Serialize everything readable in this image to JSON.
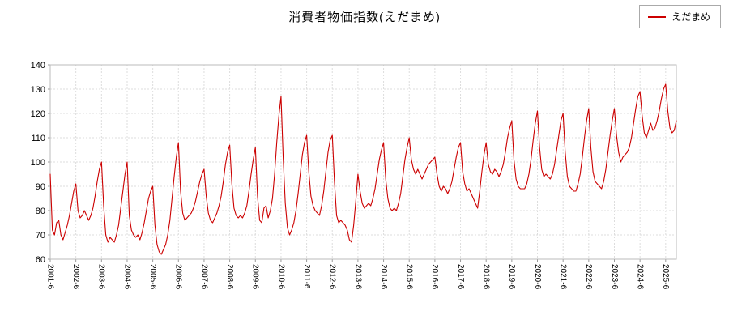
{
  "title": "消費者物価指数(えだまめ)",
  "legend": {
    "label": "えだまめ",
    "line_color": "#cc0000"
  },
  "chart_data": {
    "type": "line",
    "title": "消費者物価指数(えだまめ)",
    "series_name": "えだまめ",
    "frequency": "monthly",
    "x_start": "2001-06",
    "x_tick_every": 12,
    "x_tick_labels": [
      "2001-6",
      "2002-6",
      "2003-6",
      "2004-6",
      "2005-6",
      "2006-6",
      "2007-6",
      "2008-6",
      "2009-6",
      "2010-6",
      "2011-6",
      "2012-6",
      "2013-6",
      "2014-6",
      "2015-6",
      "2016-6",
      "2017-6",
      "2018-6",
      "2019-6",
      "2020-6",
      "2021-6",
      "2022-6",
      "2023-6",
      "2024-6",
      "2025-6"
    ],
    "ylim": [
      60,
      140
    ],
    "y_ticks": [
      60,
      70,
      80,
      90,
      100,
      110,
      120,
      130,
      140
    ],
    "grid": true,
    "line_color": "#cc0000",
    "values": [
      95,
      72,
      70,
      75,
      76,
      70,
      68,
      71,
      74,
      78,
      83,
      88,
      91,
      80,
      77,
      78,
      80,
      78,
      76,
      78,
      81,
      86,
      92,
      97,
      100,
      82,
      70,
      67,
      69,
      68,
      67,
      70,
      74,
      81,
      88,
      95,
      100,
      78,
      72,
      70,
      69,
      70,
      68,
      71,
      75,
      80,
      85,
      88,
      90,
      74,
      66,
      63,
      62,
      64,
      66,
      70,
      76,
      85,
      94,
      102,
      108,
      88,
      79,
      76,
      77,
      78,
      79,
      81,
      84,
      88,
      92,
      95,
      97,
      86,
      79,
      76,
      75,
      77,
      79,
      82,
      86,
      92,
      99,
      104,
      107,
      91,
      81,
      78,
      77,
      78,
      77,
      79,
      82,
      88,
      95,
      101,
      106,
      86,
      76,
      75,
      81,
      82,
      77,
      80,
      85,
      95,
      108,
      119,
      127,
      102,
      83,
      73,
      70,
      72,
      75,
      80,
      87,
      95,
      103,
      108,
      111,
      96,
      86,
      82,
      80,
      79,
      78,
      82,
      88,
      96,
      104,
      109,
      111,
      92,
      78,
      75,
      76,
      75,
      74,
      72,
      68,
      67,
      74,
      84,
      95,
      88,
      83,
      81,
      82,
      83,
      82,
      85,
      89,
      95,
      101,
      105,
      108,
      93,
      85,
      81,
      80,
      81,
      80,
      83,
      87,
      94,
      101,
      106,
      110,
      101,
      97,
      95,
      97,
      95,
      93,
      95,
      97,
      99,
      100,
      101,
      102,
      95,
      90,
      88,
      90,
      89,
      87,
      89,
      92,
      97,
      102,
      106,
      108,
      96,
      91,
      88,
      89,
      87,
      85,
      83,
      81,
      88,
      96,
      103,
      108,
      99,
      96,
      95,
      97,
      96,
      94,
      96,
      99,
      104,
      110,
      114,
      117,
      101,
      93,
      90,
      89,
      89,
      89,
      91,
      95,
      101,
      109,
      116,
      121,
      106,
      97,
      94,
      95,
      94,
      93,
      95,
      99,
      105,
      111,
      117,
      120,
      104,
      94,
      90,
      89,
      88,
      88,
      91,
      95,
      102,
      110,
      117,
      122,
      106,
      96,
      92,
      91,
      90,
      89,
      92,
      97,
      104,
      111,
      117,
      122,
      111,
      104,
      100,
      102,
      103,
      104,
      106,
      110,
      116,
      122,
      127,
      129,
      119,
      112,
      110,
      113,
      116,
      113,
      114,
      117,
      121,
      126,
      130,
      132,
      121,
      114,
      112,
      113,
      117
    ]
  }
}
